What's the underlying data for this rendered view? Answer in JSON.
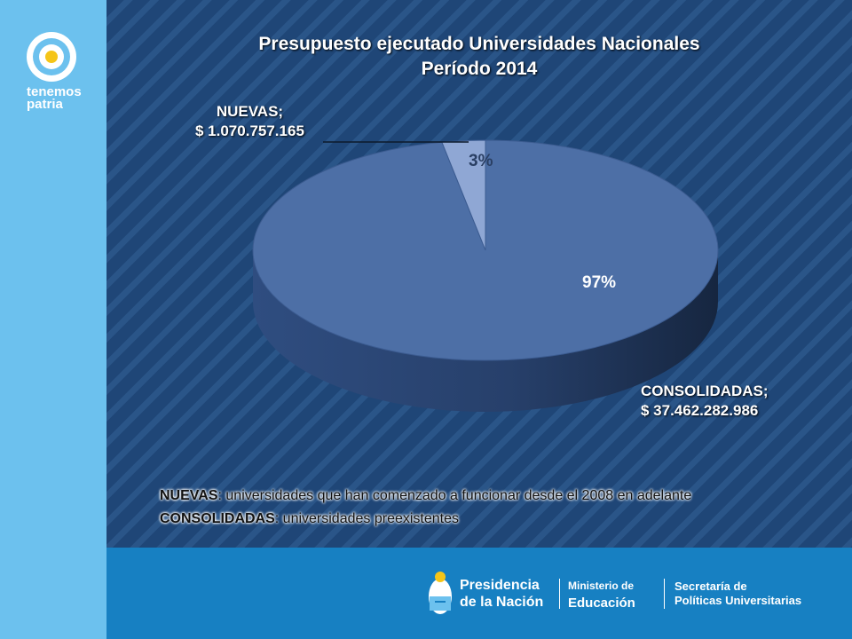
{
  "chart_data": {
    "type": "pie",
    "title": "Presupuesto ejecutado Universidades Nacionales",
    "subtitle": "Período 2014",
    "slices": [
      {
        "name": "NUEVAS;",
        "amount": "$ 1.070.757.165",
        "percent": 3,
        "percent_label": "3%",
        "color": "#8fa7d4"
      },
      {
        "name": "CONSOLIDADAS;",
        "amount": "$ 37.462.282.986",
        "percent": 97,
        "percent_label": "97%",
        "color": "#4d6fa6"
      }
    ]
  },
  "brand": {
    "line1": "tenemos",
    "line2": "patria"
  },
  "legend": [
    {
      "term": "NUEVAS",
      "desc": ": universidades que han comenzado a funcionar desde el 2008 en adelante"
    },
    {
      "term": "CONSOLIDADAS",
      "desc": ": universidades preexistentes"
    }
  ],
  "footer": {
    "presidencia_1": "Presidencia",
    "presidencia_2": "de la Nación",
    "ministerio_1": "Ministerio de",
    "ministerio_2": "Educación",
    "secretaria_1": "Secretaría de",
    "secretaria_2": "Políticas Universitarias"
  }
}
